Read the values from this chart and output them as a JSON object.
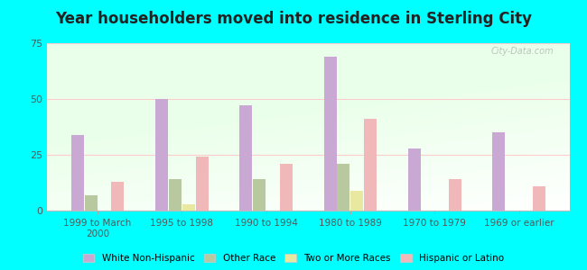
{
  "title": "Year householders moved into residence in Sterling City",
  "categories": [
    "1999 to March\n2000",
    "1995 to 1998",
    "1990 to 1994",
    "1980 to 1989",
    "1970 to 1979",
    "1969 or earlier"
  ],
  "series": {
    "White Non-Hispanic": [
      34,
      50,
      47,
      69,
      28,
      35
    ],
    "Other Race": [
      7,
      14,
      14,
      21,
      0,
      0
    ],
    "Two or More Races": [
      0,
      3,
      0,
      9,
      0,
      0
    ],
    "Hispanic or Latino": [
      13,
      24,
      21,
      41,
      14,
      11
    ]
  },
  "colors": {
    "White Non-Hispanic": "#c9a8d4",
    "Other Race": "#b8c9a0",
    "Two or More Races": "#e8e8a0",
    "Hispanic or Latino": "#f0b8b8"
  },
  "ylim": [
    0,
    75
  ],
  "yticks": [
    0,
    25,
    50,
    75
  ],
  "background_color": "#00ffff",
  "watermark": "City-Data.com",
  "bar_width": 0.15,
  "title_fontsize": 12
}
